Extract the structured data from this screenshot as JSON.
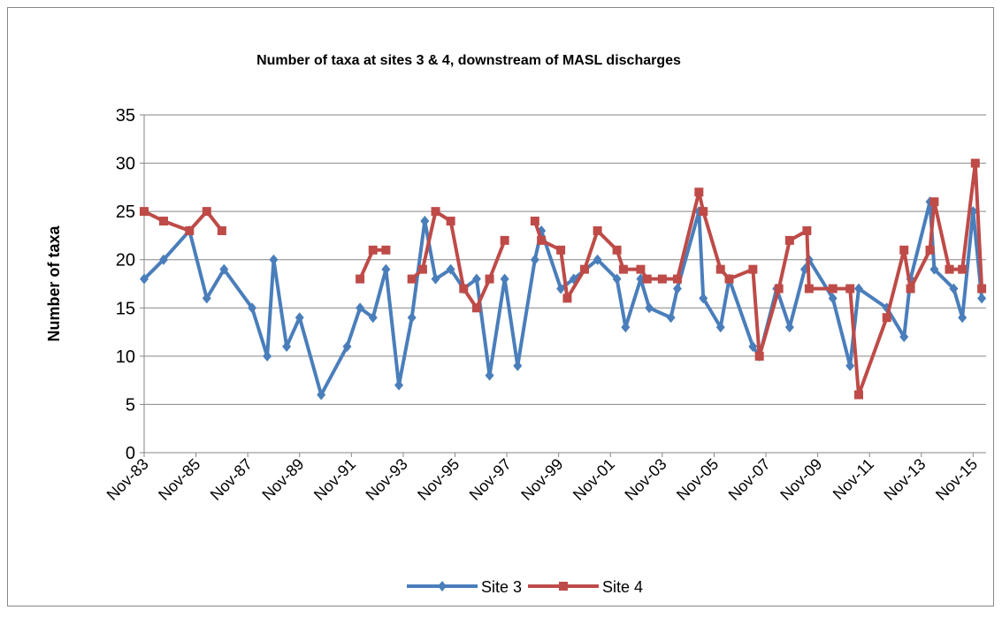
{
  "chart_data": {
    "type": "line",
    "title": "Number of taxa at sites 3 & 4, downstream of MASL discharges",
    "y_label": "Number of taxa",
    "xlim": [
      "1983-11",
      "2016-05"
    ],
    "xticks": [
      {
        "value": "1983-11",
        "label": "Nov-83"
      },
      {
        "value": "1985-11",
        "label": "Nov-85"
      },
      {
        "value": "1987-11",
        "label": "Nov-87"
      },
      {
        "value": "1989-11",
        "label": "Nov-89"
      },
      {
        "value": "1991-11",
        "label": "Nov-91"
      },
      {
        "value": "1993-11",
        "label": "Nov-93"
      },
      {
        "value": "1995-11",
        "label": "Nov-95"
      },
      {
        "value": "1997-11",
        "label": "Nov-97"
      },
      {
        "value": "1999-11",
        "label": "Nov-99"
      },
      {
        "value": "2001-11",
        "label": "Nov-01"
      },
      {
        "value": "2003-11",
        "label": "Nov-03"
      },
      {
        "value": "2005-11",
        "label": "Nov-05"
      },
      {
        "value": "2007-11",
        "label": "Nov-07"
      },
      {
        "value": "2009-11",
        "label": "Nov-09"
      },
      {
        "value": "2011-11",
        "label": "Nov-11"
      },
      {
        "value": "2013-11",
        "label": "Nov-13"
      },
      {
        "value": "2015-11",
        "label": "Nov-15"
      }
    ],
    "ylim": [
      0,
      35
    ],
    "yticks": [
      0,
      5,
      10,
      15,
      20,
      25,
      30,
      35
    ],
    "grid": true,
    "legend": "bottom",
    "series": [
      {
        "name": "Site 3",
        "color": "#4a7ebb",
        "marker": "diamond",
        "x": [
          "1983-11",
          "1984-08",
          "1985-08",
          "1986-04",
          "1986-12",
          "1988-01",
          "1988-08",
          "1988-11",
          "1989-05",
          "1989-11",
          "1990-09",
          "1991-09",
          "1992-03",
          "1992-09",
          "1993-03",
          "1993-09",
          "1994-03",
          "1994-09",
          "1995-02",
          "1995-09",
          "1996-03",
          "1996-09",
          "1997-03",
          "1997-10",
          "1998-04",
          "1998-12",
          "1999-03",
          "1999-12",
          "2000-06",
          "2001-05",
          "2002-02",
          "2002-06",
          "2003-01",
          "2003-05",
          "2004-03",
          "2004-06",
          "2005-04",
          "2005-06",
          "2006-02",
          "2006-06",
          "2007-05",
          "2007-08",
          "2008-04",
          "2008-10",
          "2009-05",
          "2009-07",
          "2010-06",
          "2011-02",
          "2011-06",
          "2012-07",
          "2013-03",
          "2013-06",
          "2014-03",
          "2014-05",
          "2015-02",
          "2015-06",
          "2015-11",
          "2016-03"
        ],
        "values": [
          18,
          20,
          23,
          16,
          19,
          15,
          10,
          20,
          11,
          14,
          6,
          11,
          15,
          14,
          19,
          7,
          14,
          24,
          18,
          19,
          17,
          18,
          8,
          18,
          9,
          20,
          23,
          17,
          18,
          20,
          18,
          13,
          18,
          15,
          14,
          17,
          25,
          16,
          13,
          18,
          11,
          10,
          17,
          13,
          19,
          20,
          16,
          9,
          17,
          15,
          12,
          18,
          26,
          19,
          17,
          14,
          25,
          16
        ]
      },
      {
        "name": "Site 4",
        "color": "#be4b48",
        "marker": "square",
        "x": [
          "1983-11",
          "1984-08",
          "1985-08",
          "1986-04",
          "1986-11",
          null,
          "1992-03",
          "1992-09",
          "1993-03",
          null,
          "1994-03",
          "1994-08",
          "1995-02",
          "1995-09",
          "1996-03",
          "1996-09",
          "1997-03",
          "1997-10",
          null,
          "1998-12",
          "1999-03",
          "1999-12",
          "2000-03",
          "2000-11",
          "2001-05",
          "2002-02",
          "2002-05",
          "2003-01",
          "2003-04",
          "2003-11",
          "2004-06",
          "2005-04",
          "2005-06",
          "2006-02",
          "2006-06",
          "2007-05",
          "2007-08",
          "2008-05",
          "2008-10",
          "2009-06",
          "2009-07",
          "2010-06",
          "2011-02",
          "2011-06",
          "2012-07",
          "2013-03",
          "2013-06",
          "2014-03",
          "2014-05",
          "2014-12",
          "2015-06",
          "2015-12",
          "2016-03"
        ],
        "values": [
          25,
          24,
          23,
          25,
          23,
          null,
          18,
          21,
          21,
          null,
          18,
          19,
          25,
          24,
          17,
          15,
          18,
          22,
          null,
          24,
          22,
          21,
          16,
          19,
          23,
          21,
          19,
          19,
          18,
          18,
          18,
          27,
          25,
          19,
          18,
          19,
          10,
          17,
          22,
          23,
          17,
          17,
          17,
          6,
          14,
          21,
          17,
          21,
          26,
          19,
          19,
          30,
          17
        ]
      }
    ]
  }
}
